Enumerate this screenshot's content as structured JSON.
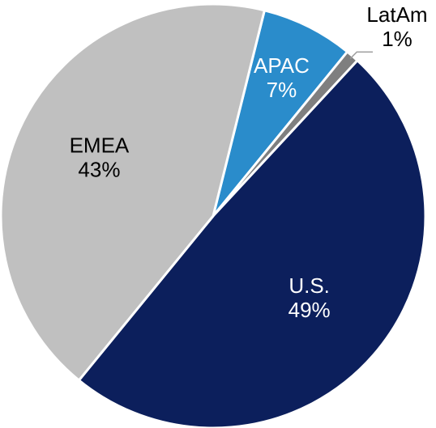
{
  "chart_data": {
    "type": "pie",
    "categories": [
      "APAC",
      "LatAm",
      "U.S.",
      "EMEA"
    ],
    "values": [
      7,
      1,
      49,
      43
    ],
    "value_labels": [
      "7%",
      "1%",
      "49%",
      "43%"
    ],
    "colors": [
      "#2a8ccb",
      "#7f7f7f",
      "#0c1f5c",
      "#c0c0c0"
    ]
  }
}
